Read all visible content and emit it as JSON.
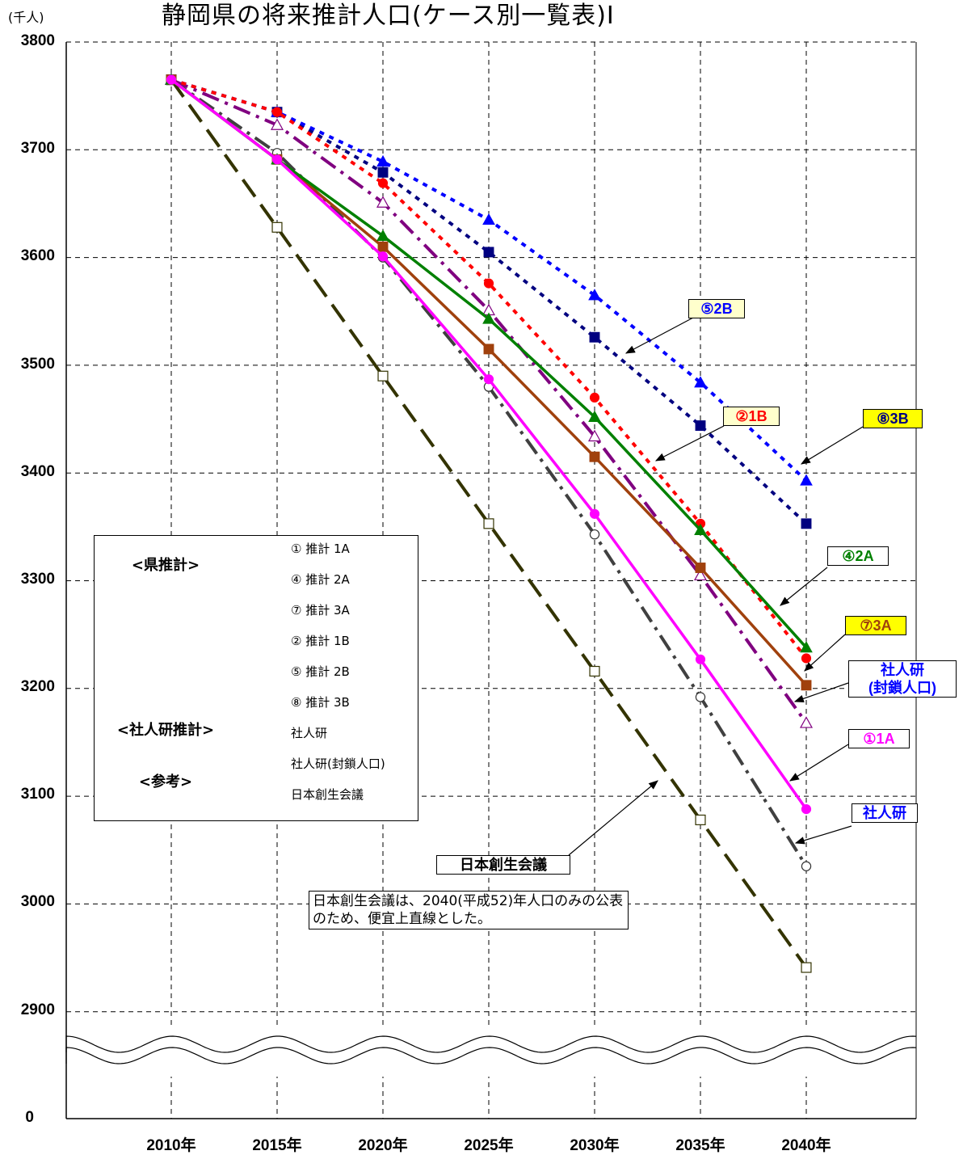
{
  "chart_data": {
    "type": "line",
    "title": "静岡県の将来推計人口(ケース別一覧表)Ⅰ",
    "y_unit": "(千人)",
    "x": [
      "2010年",
      "2015年",
      "2020年",
      "2025年",
      "2030年",
      "2035年",
      "2040年"
    ],
    "yticks": [
      "3800",
      "3700",
      "3600",
      "3500",
      "3400",
      "3300",
      "3200",
      "3100",
      "3000",
      "2900",
      "0"
    ],
    "ylim": [
      2900,
      3800
    ],
    "axis_break": "wavy lines between 2900 and 0",
    "grid": true,
    "series": [
      {
        "name": "①  推計 1A",
        "color": "#ff00ff",
        "style": "solid",
        "marker": "circle",
        "values": [
          3765,
          3691,
          3601,
          3487,
          3362,
          3227,
          3088
        ]
      },
      {
        "name": "④  推計 2A",
        "color": "#008000",
        "style": "solid",
        "marker": "triangle",
        "values": [
          3765,
          3691,
          3620,
          3543,
          3452,
          3347,
          3238
        ]
      },
      {
        "name": "⑦  推計 3A",
        "color": "#a0410d",
        "style": "solid",
        "marker": "square",
        "values": [
          3765,
          3691,
          3610,
          3515,
          3415,
          3312,
          3203
        ]
      },
      {
        "name": "②  推計 1B",
        "color": "#ff0000",
        "style": "dotted",
        "marker": "circle",
        "values": [
          3765,
          3735,
          3669,
          3576,
          3470,
          3353,
          3228
        ]
      },
      {
        "name": "⑤  推計 2B",
        "color": "#0000ff",
        "style": "dotted",
        "marker": "triangle",
        "values": [
          3765,
          3735,
          3689,
          3635,
          3565,
          3484,
          3393
        ]
      },
      {
        "name": "⑧  推計 3B",
        "color": "#000080",
        "style": "dotted",
        "marker": "square",
        "values": [
          3765,
          3735,
          3679,
          3605,
          3526,
          3444,
          3353
        ]
      },
      {
        "name": "社人研",
        "color": "#404040",
        "style": "dashdot",
        "marker": "open-circle",
        "values": [
          3765,
          3697,
          3600,
          3480,
          3343,
          3192,
          3035
        ]
      },
      {
        "name": "社人研(封鎖人口)",
        "color": "#800080",
        "style": "dashdot",
        "marker": "open-triangle",
        "values": [
          3765,
          3723,
          3651,
          3551,
          3434,
          3305,
          3168
        ]
      },
      {
        "name": "日本創生会議",
        "color": "#333300",
        "style": "dashed",
        "marker": "open-square",
        "values": [
          3765,
          3628,
          3490,
          3353,
          3216,
          3078,
          2941
        ]
      }
    ],
    "legend": {
      "placement": "left-middle",
      "groups": {
        "pref": "<県推計>",
        "ipss": "<社人研推計>",
        "ref": "<参考>"
      }
    },
    "callouts": {
      "c5": "⑤2B",
      "c2": "②1B",
      "c8": "⑧3B",
      "c4": "④2A",
      "c7": "⑦3A",
      "ipss_closed": "社人研\n(封鎖人口)",
      "c1": "①1A",
      "ipss": "社人研",
      "nihon": "日本創生会議"
    },
    "note": "日本創生会議は、2040(平成52)年人口のみの公表のため、便宜上直線とした。"
  }
}
